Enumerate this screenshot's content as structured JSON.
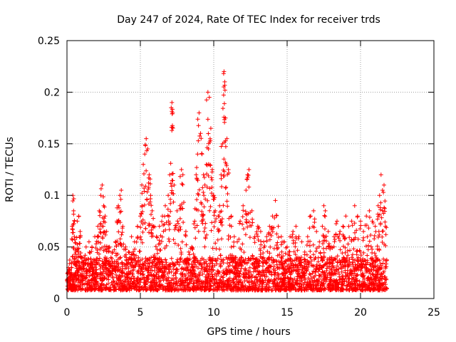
{
  "chart_data": {
    "type": "scatter",
    "title": "Day 247 of 2024, Rate Of TEC Index for receiver trds",
    "xlabel": "GPS time / hours",
    "ylabel": "ROTI / TECUs",
    "xlim": [
      0,
      25
    ],
    "ylim": [
      0,
      0.25
    ],
    "x_ticks": [
      0,
      5,
      10,
      15,
      20,
      25
    ],
    "x_tick_labels": [
      "0",
      "5",
      "10",
      "15",
      "20",
      "25"
    ],
    "y_ticks": [
      0,
      0.05,
      0.1,
      0.15,
      0.2,
      0.25
    ],
    "y_tick_labels": [
      "0",
      "0.05",
      "0.1",
      "0.15",
      "0.2",
      "0.25"
    ],
    "grid": true,
    "marker": "+",
    "color": "#ff0000",
    "series": [
      {
        "points": [
          [
            0.1,
            0.03
          ],
          [
            0.2,
            0.018
          ],
          [
            0.3,
            0.025
          ],
          [
            0.35,
            0.07
          ],
          [
            0.4,
            0.1
          ],
          [
            0.45,
            0.085
          ],
          [
            0.5,
            0.06
          ],
          [
            0.6,
            0.045
          ],
          [
            0.7,
            0.075
          ],
          [
            0.8,
            0.08
          ],
          [
            0.9,
            0.065
          ],
          [
            1.0,
            0.04
          ],
          [
            1.1,
            0.035
          ],
          [
            1.3,
            0.05
          ],
          [
            1.5,
            0.055
          ],
          [
            1.7,
            0.05
          ],
          [
            1.9,
            0.06
          ],
          [
            2.1,
            0.07
          ],
          [
            2.2,
            0.085
          ],
          [
            2.3,
            0.1
          ],
          [
            2.4,
            0.11
          ],
          [
            2.5,
            0.09
          ],
          [
            2.6,
            0.08
          ],
          [
            2.7,
            0.065
          ],
          [
            2.9,
            0.05
          ],
          [
            3.1,
            0.045
          ],
          [
            3.3,
            0.055
          ],
          [
            3.4,
            0.075
          ],
          [
            3.5,
            0.09
          ],
          [
            3.6,
            0.1
          ],
          [
            3.7,
            0.105
          ],
          [
            3.8,
            0.07
          ],
          [
            4.0,
            0.05
          ],
          [
            4.2,
            0.045
          ],
          [
            4.4,
            0.06
          ],
          [
            4.6,
            0.055
          ],
          [
            4.8,
            0.07
          ],
          [
            5.0,
            0.08
          ],
          [
            5.1,
            0.11
          ],
          [
            5.2,
            0.13
          ],
          [
            5.3,
            0.14
          ],
          [
            5.4,
            0.155
          ],
          [
            5.5,
            0.145
          ],
          [
            5.6,
            0.12
          ],
          [
            5.7,
            0.1
          ],
          [
            5.8,
            0.085
          ],
          [
            5.9,
            0.07
          ],
          [
            6.1,
            0.06
          ],
          [
            6.3,
            0.07
          ],
          [
            6.5,
            0.08
          ],
          [
            6.7,
            0.09
          ],
          [
            6.9,
            0.1
          ],
          [
            7.0,
            0.12
          ],
          [
            7.1,
            0.185
          ],
          [
            7.15,
            0.19
          ],
          [
            7.2,
            0.18
          ],
          [
            7.3,
            0.11
          ],
          [
            7.5,
            0.085
          ],
          [
            7.7,
            0.09
          ],
          [
            7.8,
            0.125
          ],
          [
            7.9,
            0.12
          ],
          [
            8.1,
            0.065
          ],
          [
            8.3,
            0.045
          ],
          [
            8.5,
            0.05
          ],
          [
            8.7,
            0.075
          ],
          [
            8.8,
            0.12
          ],
          [
            8.9,
            0.14
          ],
          [
            9.0,
            0.18
          ],
          [
            9.1,
            0.16
          ],
          [
            9.2,
            0.14
          ],
          [
            9.3,
            0.12
          ],
          [
            9.4,
            0.11
          ],
          [
            9.5,
            0.13
          ],
          [
            9.6,
            0.2
          ],
          [
            9.7,
            0.195
          ],
          [
            9.8,
            0.165
          ],
          [
            9.9,
            0.125
          ],
          [
            10.0,
            0.1
          ],
          [
            10.1,
            0.085
          ],
          [
            10.3,
            0.08
          ],
          [
            10.4,
            0.09
          ],
          [
            10.5,
            0.12
          ],
          [
            10.6,
            0.15
          ],
          [
            10.7,
            0.22
          ],
          [
            10.75,
            0.21
          ],
          [
            10.8,
            0.175
          ],
          [
            10.9,
            0.155
          ],
          [
            11.0,
            0.125
          ],
          [
            11.2,
            0.08
          ],
          [
            11.4,
            0.06
          ],
          [
            11.6,
            0.055
          ],
          [
            11.8,
            0.075
          ],
          [
            12.0,
            0.09
          ],
          [
            12.2,
            0.105
          ],
          [
            12.3,
            0.12
          ],
          [
            12.4,
            0.125
          ],
          [
            12.6,
            0.085
          ],
          [
            12.8,
            0.06
          ],
          [
            13.0,
            0.07
          ],
          [
            13.2,
            0.065
          ],
          [
            13.4,
            0.055
          ],
          [
            13.6,
            0.06
          ],
          [
            13.8,
            0.07
          ],
          [
            14.0,
            0.08
          ],
          [
            14.2,
            0.095
          ],
          [
            14.4,
            0.07
          ],
          [
            14.6,
            0.06
          ],
          [
            14.8,
            0.055
          ],
          [
            15.0,
            0.05
          ],
          [
            15.2,
            0.06
          ],
          [
            15.4,
            0.065
          ],
          [
            15.6,
            0.07
          ],
          [
            15.8,
            0.06
          ],
          [
            16.0,
            0.055
          ],
          [
            16.2,
            0.045
          ],
          [
            16.4,
            0.06
          ],
          [
            16.6,
            0.08
          ],
          [
            16.8,
            0.085
          ],
          [
            17.0,
            0.065
          ],
          [
            17.2,
            0.055
          ],
          [
            17.4,
            0.07
          ],
          [
            17.5,
            0.09
          ],
          [
            17.6,
            0.085
          ],
          [
            17.8,
            0.065
          ],
          [
            18.0,
            0.05
          ],
          [
            18.2,
            0.06
          ],
          [
            18.4,
            0.075
          ],
          [
            18.6,
            0.065
          ],
          [
            18.8,
            0.07
          ],
          [
            19.0,
            0.08
          ],
          [
            19.2,
            0.07
          ],
          [
            19.4,
            0.075
          ],
          [
            19.6,
            0.09
          ],
          [
            19.8,
            0.08
          ],
          [
            20.0,
            0.075
          ],
          [
            20.2,
            0.065
          ],
          [
            20.4,
            0.08
          ],
          [
            20.6,
            0.085
          ],
          [
            20.8,
            0.075
          ],
          [
            21.0,
            0.07
          ],
          [
            21.2,
            0.09
          ],
          [
            21.3,
            0.1
          ],
          [
            21.4,
            0.12
          ],
          [
            21.5,
            0.105
          ],
          [
            21.6,
            0.11
          ],
          [
            21.7,
            0.07
          ]
        ],
        "baseline_band": [
          0.008,
          0.04
        ],
        "x_range": [
          0.0,
          21.8
        ]
      }
    ]
  }
}
